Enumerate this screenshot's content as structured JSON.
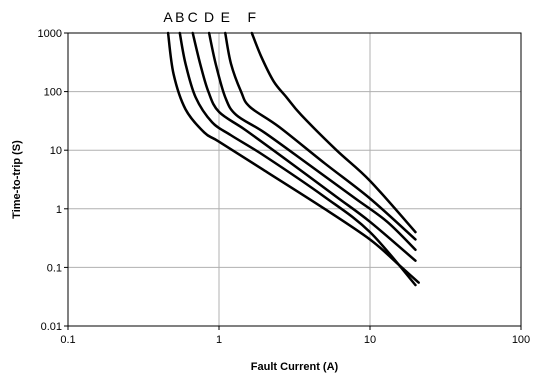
{
  "chart_data": {
    "type": "line",
    "xscale": "log",
    "yscale": "log",
    "xlim": [
      0.1,
      100
    ],
    "ylim": [
      0.01,
      1000
    ],
    "grid": true,
    "xlabel": "Fault Current (A)",
    "ylabel": "Time-to-trip (S)",
    "x_ticks": [
      "0.1",
      "1",
      "10",
      "100"
    ],
    "y_ticks": [
      "0.01",
      "0.1",
      "1",
      "10",
      "100",
      "1000"
    ],
    "series": [
      {
        "name": "A",
        "x": [
          0.46,
          0.5,
          0.6,
          0.8,
          1.0,
          2,
          5,
          10,
          15,
          21
        ],
        "y": [
          1000,
          200,
          50,
          20,
          14,
          4.5,
          1.0,
          0.3,
          0.12,
          0.055
        ]
      },
      {
        "name": "B",
        "x": [
          0.55,
          0.6,
          0.7,
          0.9,
          1.2,
          2,
          5,
          10,
          20
        ],
        "y": [
          1000,
          300,
          80,
          30,
          18,
          8,
          1.6,
          0.4,
          0.05
        ]
      },
      {
        "name": "C",
        "x": [
          0.67,
          0.75,
          0.85,
          1.0,
          1.5,
          3,
          6,
          10,
          20
        ],
        "y": [
          1000,
          300,
          100,
          45,
          22,
          6,
          1.6,
          0.6,
          0.13
        ]
      },
      {
        "name": "D",
        "x": [
          0.86,
          0.95,
          1.1,
          1.3,
          2,
          4,
          8,
          13,
          20
        ],
        "y": [
          1000,
          300,
          80,
          40,
          20,
          5.5,
          1.5,
          0.6,
          0.2
        ]
      },
      {
        "name": "E",
        "x": [
          1.1,
          1.2,
          1.4,
          1.6,
          2.5,
          5,
          10,
          20
        ],
        "y": [
          1000,
          300,
          100,
          55,
          25,
          6,
          1.5,
          0.3
        ]
      },
      {
        "name": "F",
        "x": [
          1.65,
          1.9,
          2.3,
          2.8,
          3.5,
          6,
          10,
          20
        ],
        "y": [
          1000,
          400,
          150,
          80,
          40,
          10,
          3,
          0.4
        ]
      }
    ]
  }
}
